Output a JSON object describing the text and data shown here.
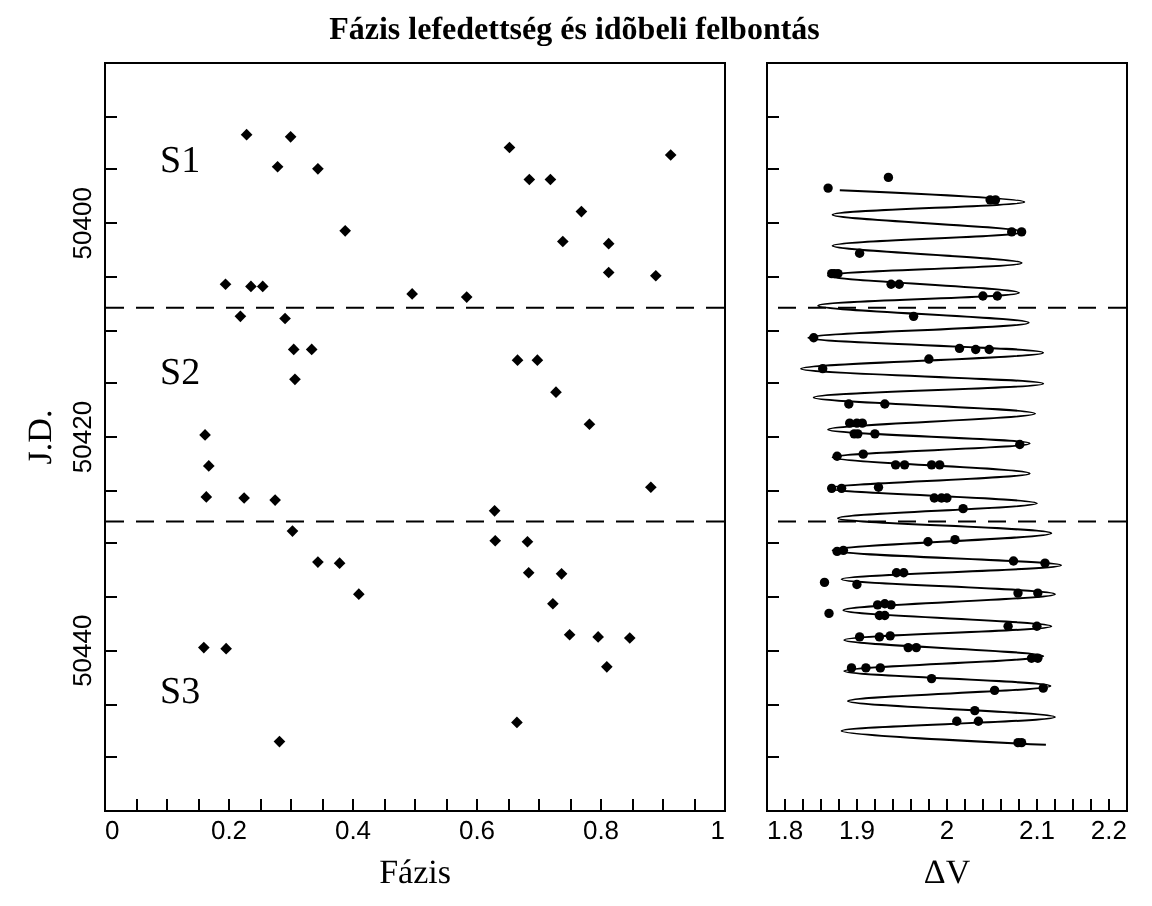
{
  "chart_data": [
    {
      "type": "scatter",
      "title": "Fázis lefedettség és idõbeli felbontás",
      "xlabel": "Fázis",
      "ylabel": "J.D.",
      "marker": "diamond",
      "tick_labels": "xy",
      "xlim": [
        0,
        1
      ],
      "ylim": [
        50455,
        50385
      ],
      "xticks": [
        0,
        {
          "value": 0.05,
          "label": null
        },
        {
          "value": 0.1,
          "label": null
        },
        {
          "value": 0.15,
          "label": null
        },
        0.2,
        {
          "value": 0.25,
          "label": null
        },
        {
          "value": 0.3,
          "label": null
        },
        {
          "value": 0.35,
          "label": null
        },
        0.4,
        {
          "value": 0.45,
          "label": null
        },
        {
          "value": 0.5,
          "label": null
        },
        {
          "value": 0.55,
          "label": null
        },
        0.6,
        {
          "value": 0.65,
          "label": null
        },
        {
          "value": 0.7,
          "label": null
        },
        {
          "value": 0.75,
          "label": null
        },
        0.8,
        {
          "value": 0.85,
          "label": null
        },
        {
          "value": 0.9,
          "label": null
        },
        {
          "value": 0.95,
          "label": null
        },
        1
      ],
      "yticks": [
        {
          "value": 50390,
          "label": null
        },
        {
          "value": 50395,
          "label": null
        },
        50400,
        {
          "value": 50405,
          "label": null
        },
        {
          "value": 50410,
          "label": null
        },
        {
          "value": 50415,
          "label": null
        },
        50420,
        {
          "value": 50425,
          "label": null
        },
        {
          "value": 50430,
          "label": null
        },
        {
          "value": 50435,
          "label": null
        },
        50440,
        {
          "value": 50445,
          "label": null
        },
        {
          "value": 50450,
          "label": null
        }
      ],
      "ref_lines": [
        {
          "axis": "y",
          "value": 50408,
          "line_style": "dashed"
        },
        {
          "axis": "y",
          "value": 50428,
          "line_style": "dashed"
        }
      ],
      "annotations": [
        "S1",
        "S2",
        "S3"
      ],
      "series": [
        {
          "color": "#000000",
          "x": [
            0.23,
            0.301,
            0.28,
            0.345,
            0.389,
            0.196,
            0.237,
            0.256,
            0.497,
            0.585,
            0.22,
            0.292,
            0.306,
            0.335,
            0.308,
            0.163,
            0.654,
            0.686,
            0.72,
            0.77,
            0.74,
            0.814,
            0.914,
            0.814,
            0.89,
            0.667,
            0.699,
            0.729,
            0.783,
            0.169,
            0.165,
            0.226,
            0.276,
            0.304,
            0.345,
            0.38,
            0.411,
            0.161,
            0.197,
            0.283,
            0.63,
            0.631,
            0.683,
            0.685,
            0.738,
            0.724,
            0.751,
            0.797,
            0.848,
            0.811,
            0.666,
            0.882
          ],
          "values": [
            50391.8,
            50392.0,
            50394.8,
            50395.0,
            50400.8,
            50405.8,
            50406.0,
            50406.0,
            50406.7,
            50407.0,
            50408.8,
            50409.0,
            50411.9,
            50411.9,
            50414.7,
            50419.9,
            50393.0,
            50396.0,
            50396.0,
            50399.0,
            50401.8,
            50402.0,
            50393.7,
            50404.7,
            50405.0,
            50412.9,
            50412.9,
            50415.9,
            50418.9,
            50422.8,
            50425.7,
            50425.8,
            50426.0,
            50428.9,
            50431.8,
            50431.9,
            50434.8,
            50439.8,
            50439.9,
            50448.6,
            50427.0,
            50429.8,
            50429.9,
            50432.8,
            50432.9,
            50435.7,
            50438.6,
            50438.8,
            50438.9,
            50441.6,
            50446.8,
            50424.8
          ]
        }
      ]
    },
    {
      "type": "scatter",
      "xlabel": "ΔV",
      "tick_labels": "x",
      "xlim": [
        1.8,
        2.2
      ],
      "ylim": [
        50455,
        50385
      ],
      "xticks": [
        1.8,
        {
          "value": 1.82,
          "label": null
        },
        {
          "value": 1.84,
          "label": null
        },
        {
          "value": 1.86,
          "label": null
        },
        {
          "value": 1.88,
          "label": null
        },
        1.9,
        {
          "value": 1.92,
          "label": null
        },
        {
          "value": 1.94,
          "label": null
        },
        {
          "value": 1.96,
          "label": null
        },
        {
          "value": 1.98,
          "label": null
        },
        2,
        {
          "value": 2.02,
          "label": null
        },
        {
          "value": 2.04,
          "label": null
        },
        {
          "value": 2.06,
          "label": null
        },
        {
          "value": 2.08,
          "label": null
        },
        2.1,
        {
          "value": 2.12,
          "label": null
        },
        {
          "value": 2.14,
          "label": null
        },
        {
          "value": 2.16,
          "label": null
        },
        {
          "value": 2.18,
          "label": null
        },
        2.2
      ],
      "yticks": [
        {
          "value": 50390,
          "label": null
        },
        {
          "value": 50395,
          "label": null
        },
        {
          "value": 50400,
          "label": null
        },
        {
          "value": 50405,
          "label": null
        },
        {
          "value": 50410,
          "label": null
        },
        {
          "value": 50415,
          "label": null
        },
        {
          "value": 50420,
          "label": null
        },
        {
          "value": 50425,
          "label": null
        },
        {
          "value": 50430,
          "label": null
        },
        {
          "value": 50435,
          "label": null
        },
        {
          "value": 50440,
          "label": null
        },
        {
          "value": 50445,
          "label": null
        },
        {
          "value": 50450,
          "label": null
        }
      ],
      "ref_lines": [
        {
          "axis": "y",
          "value": 50408,
          "line_style": "dashed"
        },
        {
          "axis": "y",
          "value": 50428,
          "line_style": "dashed"
        }
      ],
      "series": [
        {
          "type": "line",
          "color": "#000000",
          "x": [
            1.882,
            2.087,
            1.874,
            2.086,
            1.874,
            2.084,
            1.869,
            2.081,
            1.858,
            2.092,
            1.847,
            2.108,
            1.839,
            2.108,
            1.853,
            2.099,
            1.869,
            2.093,
            1.874,
            2.093,
            1.869,
            2.101,
            1.88,
            2.117,
            1.874,
            2.128,
            1.884,
            2.121,
            1.886,
            2.117,
            1.887,
            2.108,
            1.887,
            2.116,
            1.891,
            2.121,
            1.884,
            2.111
          ],
          "values": [
            50397.0,
            50398.1,
            50399.3,
            50400.9,
            50402.2,
            50403.8,
            50405.0,
            50406.6,
            50407.8,
            50409.4,
            50410.8,
            50412.2,
            50413.7,
            50415.1,
            50416.4,
            50417.9,
            50419.4,
            50420.7,
            50422.0,
            50423.5,
            50424.9,
            50426.3,
            50427.7,
            50429.1,
            50430.7,
            50432.1,
            50433.4,
            50434.8,
            50436.3,
            50437.8,
            50439.1,
            50440.6,
            50442.0,
            50443.4,
            50444.8,
            50446.3,
            50447.6,
            50448.9
          ]
        },
        {
          "marker": "circle",
          "color": "#000000",
          "x": [
            1.869,
            1.936,
            2.049,
            2.055,
            2.073,
            2.084,
            1.904,
            1.873,
            1.876,
            1.88,
            1.939,
            1.948,
            2.041,
            2.057,
            1.964,
            1.853,
            2.015,
            2.033,
            2.048,
            1.981,
            1.863,
            1.892,
            1.932,
            1.893,
            1.901,
            1.907,
            1.898,
            1.902,
            1.921,
            2.082,
            1.879,
            1.908,
            1.944,
            1.954,
            1.984,
            1.993,
            1.873,
            1.884,
            1.925,
            1.987,
            1.995,
            2.001,
            2.019,
            1.98,
            2.01,
            1.879,
            1.886,
            2.075,
            2.11,
            1.945,
            1.953,
            1.865,
            1.901,
            2.08,
            2.102,
            1.924,
            1.932,
            1.939,
            1.87,
            1.926,
            1.932,
            2.069,
            2.101,
            1.904,
            1.926,
            1.938,
            1.958,
            1.967,
            2.095,
            2.102,
            1.895,
            1.911,
            1.927,
            1.984,
            2.054,
            2.108,
            2.032,
            2.012,
            2.036,
            2.08,
            2.084
          ],
          "values": [
            50396.8,
            50395.8,
            50397.9,
            50397.9,
            50400.9,
            50400.9,
            50402.9,
            50404.8,
            50404.8,
            50404.8,
            50405.8,
            50405.8,
            50406.9,
            50406.9,
            50408.8,
            50410.8,
            50411.8,
            50411.9,
            50411.9,
            50412.8,
            50413.7,
            50417.0,
            50417.0,
            50418.8,
            50418.8,
            50418.8,
            50419.8,
            50419.8,
            50419.8,
            50420.8,
            50421.9,
            50421.7,
            50422.7,
            50422.7,
            50422.7,
            50422.7,
            50424.9,
            50424.9,
            50424.8,
            50425.8,
            50425.8,
            50425.8,
            50426.8,
            50429.9,
            50429.7,
            50430.8,
            50430.7,
            50431.7,
            50431.9,
            50432.8,
            50432.8,
            50433.7,
            50433.9,
            50434.7,
            50434.7,
            50435.8,
            50435.7,
            50435.8,
            50436.6,
            50436.8,
            50436.8,
            50437.8,
            50437.8,
            50438.8,
            50438.8,
            50438.7,
            50439.8,
            50439.8,
            50440.8,
            50440.8,
            50441.7,
            50441.7,
            50441.7,
            50442.7,
            50443.8,
            50443.6,
            50445.7,
            50446.7,
            50446.7,
            50448.7,
            50448.7
          ]
        }
      ]
    }
  ]
}
